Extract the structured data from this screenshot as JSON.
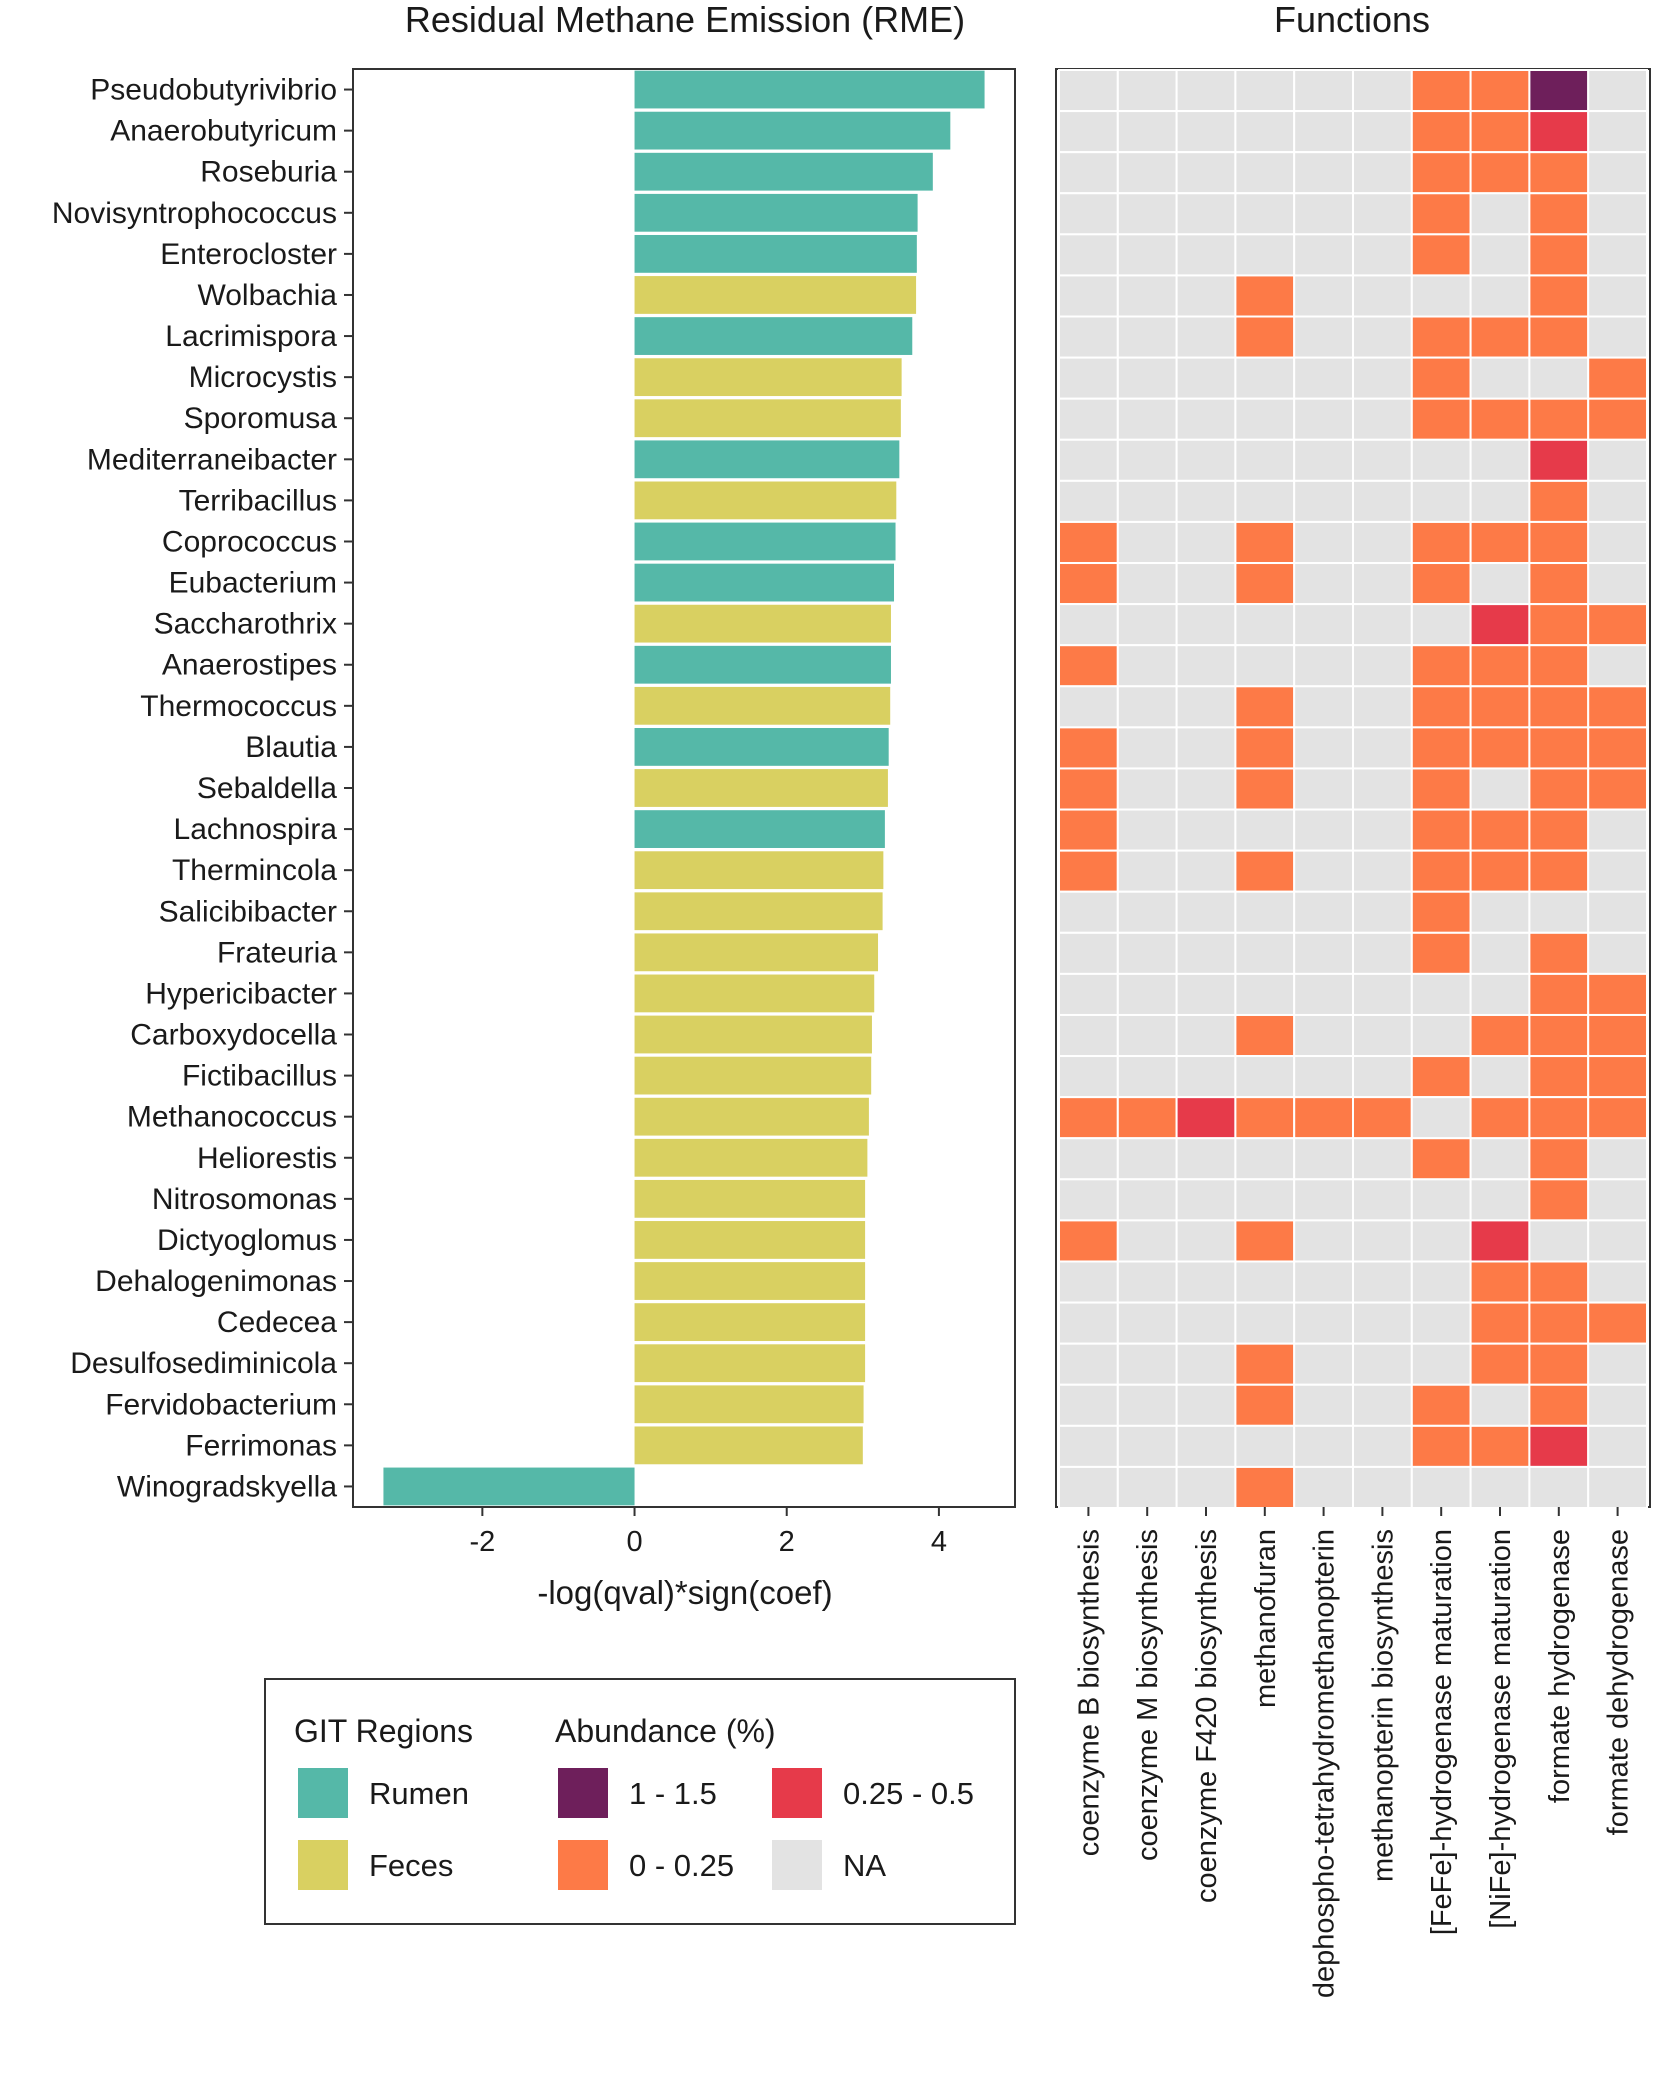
{
  "chart_data": [
    {
      "type": "bar",
      "orientation": "horizontal",
      "title": "Residual Methane Emission (RME)",
      "xlabel": "-log(qval)*sign(coef)",
      "ylabel": "",
      "xlim": [
        -3.7,
        5.0
      ],
      "x_ticks": [
        "-2",
        "0",
        "2",
        "4"
      ],
      "x_tick_values": [
        -2,
        0,
        2,
        4
      ],
      "categories": [
        "Pseudobutyrivibrio",
        "Anaerobutyricum",
        "Roseburia",
        "Novisyntrophococcus",
        "Enterocloster",
        "Wolbachia",
        "Lacrimispora",
        "Microcystis",
        "Sporomusa",
        "Mediterraneibacter",
        "Terribacillus",
        "Coprococcus",
        "Eubacterium",
        "Saccharothrix",
        "Anaerostipes",
        "Thermococcus",
        "Blautia",
        "Sebaldella",
        "Lachnospira",
        "Thermincola",
        "Salicibibacter",
        "Frateuria",
        "Hypericibacter",
        "Carboxydocella",
        "Fictibacillus",
        "Methanococcus",
        "Heliorestis",
        "Nitrosomonas",
        "Dictyoglomus",
        "Dehalogenimonas",
        "Cedecea",
        "Desulfosediminicola",
        "Fervidobacterium",
        "Ferrimonas",
        "Winogradskyella"
      ],
      "values": [
        4.6,
        4.15,
        3.92,
        3.72,
        3.71,
        3.7,
        3.65,
        3.51,
        3.5,
        3.48,
        3.44,
        3.43,
        3.41,
        3.37,
        3.37,
        3.36,
        3.34,
        3.33,
        3.29,
        3.27,
        3.26,
        3.2,
        3.15,
        3.12,
        3.11,
        3.08,
        3.06,
        3.03,
        3.03,
        3.03,
        3.03,
        3.03,
        3.01,
        3.0,
        -3.3
      ],
      "region": [
        "Rumen",
        "Rumen",
        "Rumen",
        "Rumen",
        "Rumen",
        "Feces",
        "Rumen",
        "Feces",
        "Feces",
        "Rumen",
        "Feces",
        "Rumen",
        "Rumen",
        "Feces",
        "Rumen",
        "Feces",
        "Rumen",
        "Feces",
        "Rumen",
        "Feces",
        "Feces",
        "Feces",
        "Feces",
        "Feces",
        "Feces",
        "Feces",
        "Feces",
        "Feces",
        "Feces",
        "Feces",
        "Feces",
        "Feces",
        "Feces",
        "Feces",
        "Rumen"
      ]
    },
    {
      "type": "heatmap",
      "title": "Functions",
      "columns": [
        "coenzyme B biosynthesis",
        "coenzyme M biosynthesis",
        "coenzyme F420 biosynthesis",
        "methanofuran",
        "dephospho-tetrahydromethanopterin",
        "methanopterin biosynthesis",
        "[FeFe]-hydrogenase maturation",
        "[NiFe]-hydrogenase maturation",
        "formate hydrogenase",
        "formate dehydrogenase"
      ],
      "rows": [
        "Pseudobutyrivibrio",
        "Anaerobutyricum",
        "Roseburia",
        "Novisyntrophococcus",
        "Enterocloster",
        "Wolbachia",
        "Lacrimispora",
        "Microcystis",
        "Sporomusa",
        "Mediterraneibacter",
        "Terribacillus",
        "Coprococcus",
        "Eubacterium",
        "Saccharothrix",
        "Anaerostipes",
        "Thermococcus",
        "Blautia",
        "Sebaldella",
        "Lachnospira",
        "Thermincola",
        "Salicibibacter",
        "Frateuria",
        "Hypericibacter",
        "Carboxydocella",
        "Fictibacillus",
        "Methanococcus",
        "Heliorestis",
        "Nitrosomonas",
        "Dictyoglomus",
        "Dehalogenimonas",
        "Cedecea",
        "Desulfosediminicola",
        "Fervidobacterium",
        "Ferrimonas",
        "Winogradskyella"
      ],
      "value_legend": {
        "0": "NA",
        "1": "0 - 0.25",
        "2": "0.25 - 0.5",
        "3": "1 - 1.5"
      },
      "cells": [
        [
          0,
          0,
          0,
          0,
          0,
          0,
          1,
          1,
          3,
          0
        ],
        [
          0,
          0,
          0,
          0,
          0,
          0,
          1,
          1,
          2,
          0
        ],
        [
          0,
          0,
          0,
          0,
          0,
          0,
          1,
          1,
          1,
          0
        ],
        [
          0,
          0,
          0,
          0,
          0,
          0,
          1,
          0,
          1,
          0
        ],
        [
          0,
          0,
          0,
          0,
          0,
          0,
          1,
          0,
          1,
          0
        ],
        [
          0,
          0,
          0,
          1,
          0,
          0,
          0,
          0,
          1,
          0
        ],
        [
          0,
          0,
          0,
          1,
          0,
          0,
          1,
          1,
          1,
          0
        ],
        [
          0,
          0,
          0,
          0,
          0,
          0,
          1,
          0,
          0,
          1
        ],
        [
          0,
          0,
          0,
          0,
          0,
          0,
          1,
          1,
          1,
          1
        ],
        [
          0,
          0,
          0,
          0,
          0,
          0,
          0,
          0,
          2,
          0
        ],
        [
          0,
          0,
          0,
          0,
          0,
          0,
          0,
          0,
          1,
          0
        ],
        [
          1,
          0,
          0,
          1,
          0,
          0,
          1,
          1,
          1,
          0
        ],
        [
          1,
          0,
          0,
          1,
          0,
          0,
          1,
          0,
          1,
          0
        ],
        [
          0,
          0,
          0,
          0,
          0,
          0,
          0,
          2,
          1,
          1
        ],
        [
          1,
          0,
          0,
          0,
          0,
          0,
          1,
          1,
          1,
          0
        ],
        [
          0,
          0,
          0,
          1,
          0,
          0,
          1,
          1,
          1,
          1
        ],
        [
          1,
          0,
          0,
          1,
          0,
          0,
          1,
          1,
          1,
          1
        ],
        [
          1,
          0,
          0,
          1,
          0,
          0,
          1,
          0,
          1,
          1
        ],
        [
          1,
          0,
          0,
          0,
          0,
          0,
          1,
          1,
          1,
          0
        ],
        [
          1,
          0,
          0,
          1,
          0,
          0,
          1,
          1,
          1,
          0
        ],
        [
          0,
          0,
          0,
          0,
          0,
          0,
          1,
          0,
          0,
          0
        ],
        [
          0,
          0,
          0,
          0,
          0,
          0,
          1,
          0,
          1,
          0
        ],
        [
          0,
          0,
          0,
          0,
          0,
          0,
          0,
          0,
          1,
          1
        ],
        [
          0,
          0,
          0,
          1,
          0,
          0,
          0,
          1,
          1,
          1
        ],
        [
          0,
          0,
          0,
          0,
          0,
          0,
          1,
          0,
          1,
          1
        ],
        [
          1,
          1,
          2,
          1,
          1,
          1,
          0,
          1,
          1,
          1
        ],
        [
          0,
          0,
          0,
          0,
          0,
          0,
          1,
          0,
          1,
          0
        ],
        [
          0,
          0,
          0,
          0,
          0,
          0,
          0,
          0,
          1,
          0
        ],
        [
          1,
          0,
          0,
          1,
          0,
          0,
          0,
          2,
          0,
          0
        ],
        [
          0,
          0,
          0,
          0,
          0,
          0,
          0,
          1,
          1,
          0
        ],
        [
          0,
          0,
          0,
          0,
          0,
          0,
          0,
          1,
          1,
          1
        ],
        [
          0,
          0,
          0,
          1,
          0,
          0,
          0,
          1,
          1,
          0
        ],
        [
          0,
          0,
          0,
          1,
          0,
          0,
          1,
          0,
          1,
          0
        ],
        [
          0,
          0,
          0,
          0,
          0,
          0,
          1,
          1,
          2,
          0
        ],
        [
          0,
          0,
          0,
          1,
          0,
          0,
          0,
          0,
          0,
          0
        ]
      ]
    }
  ],
  "colors": {
    "rumen": "#55b8a8",
    "feces": "#d9d061",
    "abund_1_1_5": "#6e1f5b",
    "abund_0_25_0_5": "#e63a4a",
    "abund_0_0_25": "#fd7a47",
    "abund_na": "#e3e3e3"
  },
  "legend": {
    "git_title": "GIT Regions",
    "rumen_label": "Rumen",
    "feces_label": "Feces",
    "abund_title": "Abundance (%)",
    "a1_label": "1 - 1.5",
    "a2_label": "0.25 - 0.5",
    "a3_label": "0 - 0.25",
    "a4_label": "NA"
  }
}
